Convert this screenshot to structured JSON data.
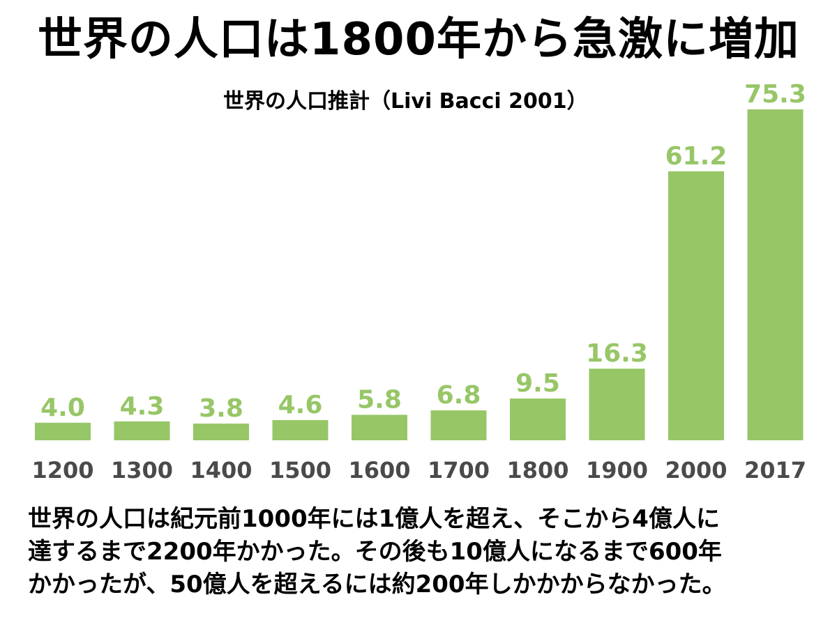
{
  "title": "世界の人口は1800年から急激に増加",
  "caption": [
    "世界の人口は紀元前1000年には1億人を超え、そこから4億人に",
    "達するまで2200年かかった。その後も10億人になるまで600年",
    "かかったが、50億人を超えるには約200年しかかからなかった。"
  ],
  "colors": {
    "bar": "#97c667",
    "value_label": "#97c667",
    "tick_label": "#4a4a4a",
    "text": "#000000"
  },
  "chart_data": {
    "type": "bar",
    "title": "世界の人口推計（Livi Bacci 2001）",
    "xlabel": "",
    "ylabel": "",
    "categories": [
      "1200",
      "1300",
      "1400",
      "1500",
      "1600",
      "1700",
      "1800",
      "1900",
      "2000",
      "2017"
    ],
    "values": [
      4.0,
      4.3,
      3.8,
      4.6,
      5.8,
      6.8,
      9.5,
      16.3,
      61.2,
      75.3
    ],
    "value_labels": [
      "4.0",
      "4.3",
      "3.8",
      "4.6",
      "5.8",
      "6.8",
      "9.5",
      "16.3",
      "61.2",
      "75.3"
    ],
    "ylim": [
      0,
      75.3
    ],
    "grid": false,
    "legend": "none"
  }
}
